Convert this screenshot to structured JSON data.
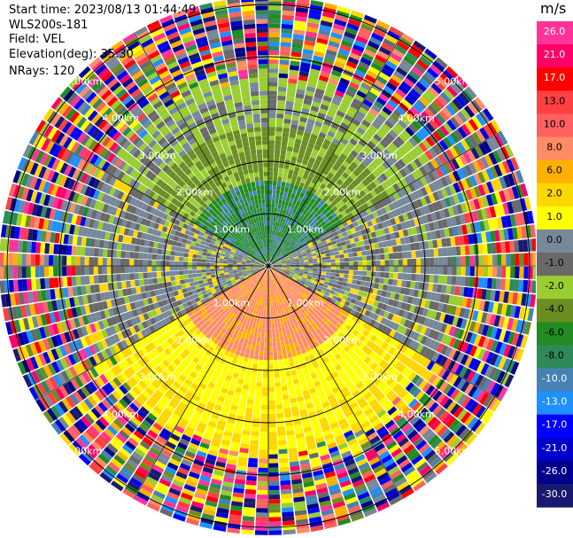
{
  "header": {
    "start_time": "Start time: 2023/08/13 01:44:49",
    "instrument": "WLS200s-181",
    "field": "Field: VEL",
    "elevation": "Elevation(deg): 35.30",
    "nrays": "NRays: 120"
  },
  "chart_data": {
    "type": "ppi",
    "field": "VEL",
    "units": "m/s",
    "n_rays": 120,
    "range_rings_km": [
      1.0,
      2.0,
      3.0,
      4.0,
      5.0
    ],
    "ring_labels": [
      "1.00km",
      "2.00km",
      "3.00km",
      "4.00km",
      "5.00km"
    ],
    "colorbar": {
      "label": "m/s",
      "ticks": [
        "26.0",
        "21.0",
        "17.0",
        "13.0",
        "10.0",
        "8.0",
        "6.0",
        "2.0",
        "1.0",
        "0.0",
        "-1.0",
        "-2.0",
        "-4.0",
        "-6.0",
        "-8.0",
        "-10.0",
        "-13.0",
        "-17.0",
        "-21.0",
        "-26.0",
        "-30.0"
      ],
      "colors": [
        "#ff3399",
        "#ff0066",
        "#ff0000",
        "#ff4040",
        "#ff6060",
        "#ff8c66",
        "#ffb000",
        "#ffd700",
        "#ffff00",
        "#778899",
        "#696969",
        "#9acd32",
        "#6b8e23",
        "#228b22",
        "#2e8b57",
        "#4682b4",
        "#1e90ff",
        "#0000ff",
        "#0000cd",
        "#00008b",
        "#191970"
      ]
    }
  }
}
